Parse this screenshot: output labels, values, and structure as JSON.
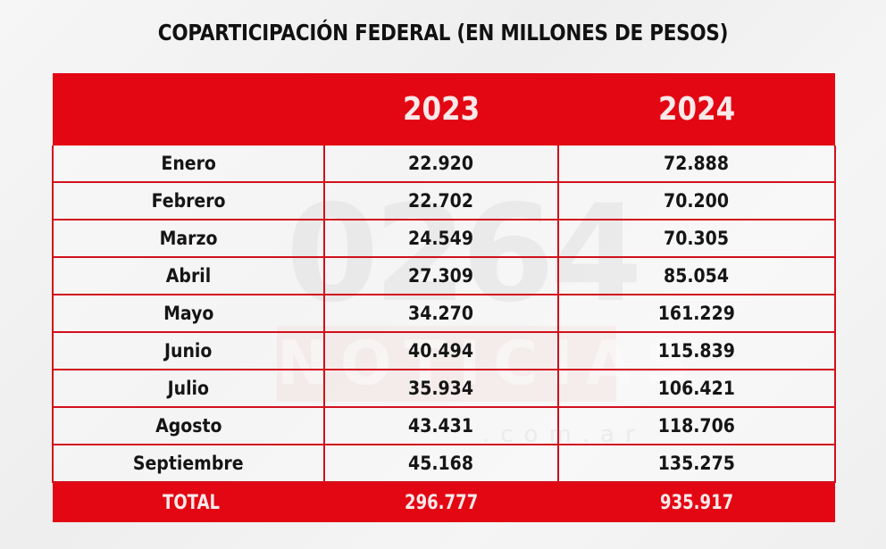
{
  "chart_data": {
    "type": "table",
    "title": "COPARTICIPACIÓN FEDERAL (EN MILLONES DE PESOS)",
    "columns": [
      "",
      "2023",
      "2024"
    ],
    "categories": [
      "Enero",
      "Febrero",
      "Marzo",
      "Abril",
      "Mayo",
      "Junio",
      "Julio",
      "Agosto",
      "Septiembre"
    ],
    "series": [
      {
        "name": "2023",
        "values": [
          "22.920",
          "22.702",
          "24.549",
          "27.309",
          "34.270",
          "40.494",
          "35.934",
          "43.431",
          "45.168"
        ]
      },
      {
        "name": "2024",
        "values": [
          "72.888",
          "70.200",
          "70.305",
          "85.054",
          "161.229",
          "115.839",
          "106.421",
          "118.706",
          "135.275"
        ]
      }
    ],
    "rows": [
      {
        "month": "Enero",
        "y2023": "22.920",
        "y2024": "72.888"
      },
      {
        "month": "Febrero",
        "y2023": "22.702",
        "y2024": "70.200"
      },
      {
        "month": "Marzo",
        "y2023": "24.549",
        "y2024": "70.305"
      },
      {
        "month": "Abril",
        "y2023": "27.309",
        "y2024": "85.054"
      },
      {
        "month": "Mayo",
        "y2023": "34.270",
        "y2024": "161.229"
      },
      {
        "month": "Junio",
        "y2023": "40.494",
        "y2024": "115.839"
      },
      {
        "month": "Julio",
        "y2023": "35.934",
        "y2024": "106.421"
      },
      {
        "month": "Agosto",
        "y2023": "43.431",
        "y2024": "118.706"
      },
      {
        "month": "Septiembre",
        "y2023": "45.168",
        "y2024": "135.275"
      }
    ],
    "total": {
      "label": "TOTAL",
      "y2023": "296.777",
      "y2024": "935.917"
    },
    "units": "millones de pesos"
  },
  "watermark": {
    "number": "0264",
    "word": "NOTICIAS",
    "domain": ".com.ar"
  },
  "colors": {
    "accent_red": "#e30613",
    "header_text": "#fbe9e9",
    "body_text": "#151515"
  }
}
